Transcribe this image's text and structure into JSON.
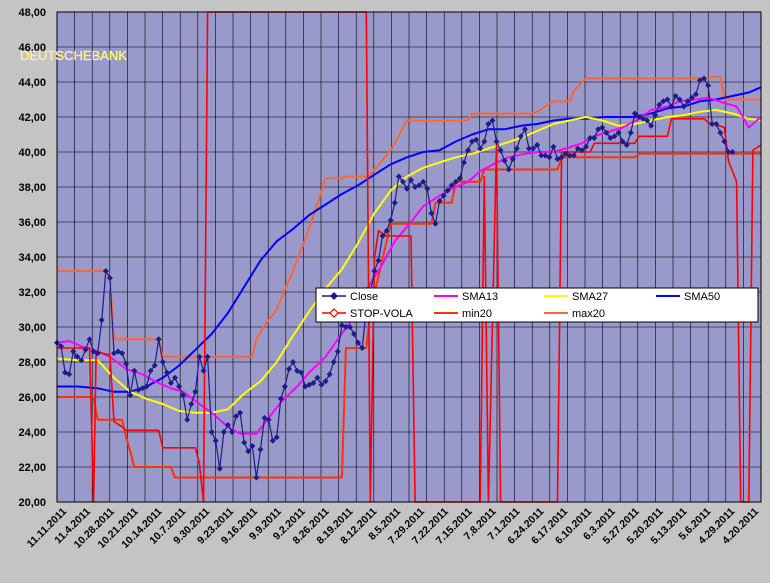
{
  "chart_data": {
    "type": "line",
    "title": "DEUTSCHEBANK",
    "xlabel": "",
    "ylabel": "",
    "ylim": [
      20,
      48
    ],
    "grid": true,
    "legend_position": "center-right",
    "y_ticks": [
      "20,00",
      "22,00",
      "24,00",
      "26,00",
      "28,00",
      "30,00",
      "32,00",
      "34,00",
      "36,00",
      "38,00",
      "40,00",
      "42,00",
      "44,00",
      "46,00",
      "48,00"
    ],
    "x_labels": [
      "11.11.2011",
      "11.4.2011",
      "10.28.2011",
      "10.21.2011",
      "10.14.2011",
      "10.7.2011",
      "9.30.2011",
      "9.23.2011",
      "9.16.2011",
      "9.9.2011",
      "9.2.2011",
      "8.26.2011",
      "8.19.2011",
      "8.12.2011",
      "8.5.2011",
      "7.29.2011",
      "7.22.2011",
      "7.15.2011",
      "7.8.2011",
      "7.1.2011",
      "6.24.2011",
      "6.17.2011",
      "6.10.2011",
      "6.3.2011",
      "5.27.2011",
      "5.20.2011",
      "5.13.2011",
      "5.6.2011",
      "4.29.2011",
      "4.20.2011"
    ],
    "legend": {
      "close": "Close",
      "sma13": "SMA13",
      "sma27": "SMA27",
      "sma50": "SMA50",
      "stop": "STOP-VOLA",
      "min20": "min20",
      "max20": "max20"
    },
    "colors": {
      "close": "#1c1c8c",
      "sma13": "#ff00ff",
      "sma27": "#ffff00",
      "sma50": "#0000ff",
      "stop": "#ff0000",
      "min20": "#ff3300",
      "max20": "#ff6633",
      "plot_bg": "#9999cc",
      "title": "#ffff00"
    },
    "series": [
      {
        "name": "Close",
        "values": [
          29.1,
          28.9,
          27.4,
          27.3,
          28.6,
          28.3,
          28.1,
          28.7,
          29.3,
          28.6,
          28.5,
          30.4,
          33.2,
          32.8,
          28.5,
          28.6,
          28.5,
          27.9,
          26.1,
          27.5,
          26.4,
          26.5,
          26.6,
          27.5,
          27.8,
          29.3,
          28.0,
          27.4,
          26.8,
          27.1,
          26.6,
          26.1,
          24.7,
          25.6,
          26.3,
          28.3,
          27.5,
          28.3,
          24.0,
          23.5,
          21.9,
          24.0,
          24.4,
          24.0,
          24.9,
          25.1,
          23.4,
          22.9,
          23.2,
          21.4,
          23.0,
          24.8,
          24.7,
          23.5,
          23.7,
          25.9,
          26.6,
          27.6,
          28.0,
          27.5,
          27.4,
          26.6,
          26.7,
          26.8,
          27.1,
          26.7,
          26.9,
          27.3,
          28.0,
          28.6,
          30.1,
          30.0,
          30.0,
          29.6,
          29.1,
          28.8,
          31.0,
          31.9,
          33.2,
          33.8,
          35.2,
          35.5,
          36.1,
          37.1,
          38.6,
          38.3,
          37.9,
          38.4,
          38.0,
          38.1,
          38.3,
          37.9,
          36.5,
          35.9,
          37.2,
          37.5,
          37.8,
          38.1,
          38.3,
          38.5,
          39.4,
          40.1,
          40.6,
          40.7,
          40.2,
          40.6,
          41.6,
          41.8,
          40.6,
          40.1,
          39.5,
          39.0,
          39.6,
          40.2,
          40.9,
          41.3,
          40.2,
          40.2,
          40.4,
          39.8,
          39.8,
          39.7,
          40.3,
          39.6,
          39.7,
          39.9,
          39.8,
          39.8,
          40.2,
          40.1,
          40.3,
          40.8,
          40.8,
          41.3,
          41.4,
          41.1,
          40.8,
          40.9,
          41.1,
          40.6,
          40.4,
          41.1,
          42.2,
          42.0,
          41.9,
          41.8,
          41.5,
          42.1,
          42.7,
          42.9,
          43.0,
          42.6,
          43.2,
          43.0,
          42.6,
          42.9,
          43.1,
          43.3,
          44.1,
          44.2,
          43.8,
          41.6,
          41.6,
          41.1,
          40.6,
          40.0,
          40.0
        ]
      },
      {
        "name": "SMA13",
        "points": [
          [
            0,
            29.1
          ],
          [
            3,
            29.2
          ],
          [
            6,
            28.9
          ],
          [
            10,
            28.6
          ],
          [
            13,
            28.3
          ],
          [
            17,
            27.6
          ],
          [
            21,
            27.3
          ],
          [
            24,
            26.9
          ],
          [
            28,
            26.5
          ],
          [
            31,
            26.3
          ],
          [
            35,
            25.6
          ],
          [
            38,
            25.1
          ],
          [
            42,
            24.3
          ],
          [
            45,
            23.9
          ],
          [
            49,
            23.9
          ],
          [
            52,
            24.8
          ],
          [
            55,
            25.7
          ],
          [
            59,
            26.6
          ],
          [
            62,
            27.4
          ],
          [
            66,
            28.3
          ],
          [
            69,
            29.3
          ],
          [
            73,
            30.6
          ],
          [
            76,
            32.1
          ],
          [
            80,
            33.6
          ],
          [
            83,
            34.9
          ],
          [
            87,
            36.0
          ],
          [
            90,
            36.9
          ],
          [
            94,
            37.5
          ],
          [
            97,
            37.9
          ],
          [
            101,
            38.3
          ],
          [
            104,
            38.9
          ],
          [
            108,
            39.4
          ],
          [
            111,
            39.7
          ],
          [
            115,
            39.9
          ],
          [
            118,
            40.0
          ],
          [
            122,
            40.0
          ],
          [
            125,
            40.2
          ],
          [
            129,
            40.5
          ],
          [
            132,
            40.9
          ],
          [
            136,
            41.2
          ],
          [
            139,
            41.4
          ],
          [
            143,
            41.9
          ],
          [
            146,
            42.4
          ],
          [
            150,
            42.6
          ],
          [
            153,
            42.9
          ],
          [
            157,
            43.0
          ],
          [
            160,
            43.1
          ],
          [
            164,
            42.8
          ],
          [
            167,
            42.6
          ],
          [
            170,
            41.4
          ],
          [
            173,
            42.0
          ]
        ]
      },
      {
        "name": "SMA27",
        "points": [
          [
            0,
            28.2
          ],
          [
            5,
            28.1
          ],
          [
            10,
            28.1
          ],
          [
            14,
            27.1
          ],
          [
            18,
            26.3
          ],
          [
            22,
            25.9
          ],
          [
            26,
            25.6
          ],
          [
            30,
            25.2
          ],
          [
            34,
            25.1
          ],
          [
            38,
            25.1
          ],
          [
            42,
            25.3
          ],
          [
            46,
            26.2
          ],
          [
            50,
            26.9
          ],
          [
            54,
            28.0
          ],
          [
            58,
            29.5
          ],
          [
            62,
            30.9
          ],
          [
            66,
            32.2
          ],
          [
            70,
            33.3
          ],
          [
            74,
            34.8
          ],
          [
            78,
            36.5
          ],
          [
            82,
            37.8
          ],
          [
            86,
            38.6
          ],
          [
            90,
            39.1
          ],
          [
            94,
            39.4
          ],
          [
            98,
            39.7
          ],
          [
            102,
            39.9
          ],
          [
            106,
            40.2
          ],
          [
            110,
            40.5
          ],
          [
            114,
            40.8
          ],
          [
            118,
            41.2
          ],
          [
            122,
            41.6
          ],
          [
            126,
            41.8
          ],
          [
            130,
            42.0
          ],
          [
            134,
            41.8
          ],
          [
            138,
            41.5
          ],
          [
            142,
            41.6
          ],
          [
            146,
            41.8
          ],
          [
            150,
            42.0
          ],
          [
            154,
            42.1
          ],
          [
            158,
            42.3
          ],
          [
            162,
            42.4
          ],
          [
            166,
            42.2
          ],
          [
            170,
            41.9
          ],
          [
            173,
            41.8
          ]
        ]
      },
      {
        "name": "SMA50",
        "points": [
          [
            0,
            26.6
          ],
          [
            5,
            26.6
          ],
          [
            10,
            26.5
          ],
          [
            14,
            26.3
          ],
          [
            18,
            26.3
          ],
          [
            22,
            26.6
          ],
          [
            26,
            27.1
          ],
          [
            30,
            27.8
          ],
          [
            34,
            28.7
          ],
          [
            38,
            29.6
          ],
          [
            42,
            30.8
          ],
          [
            46,
            32.3
          ],
          [
            50,
            33.8
          ],
          [
            54,
            34.9
          ],
          [
            58,
            35.6
          ],
          [
            62,
            36.4
          ],
          [
            66,
            37.0
          ],
          [
            70,
            37.6
          ],
          [
            74,
            38.1
          ],
          [
            78,
            38.7
          ],
          [
            82,
            39.3
          ],
          [
            86,
            39.7
          ],
          [
            90,
            40.0
          ],
          [
            94,
            40.1
          ],
          [
            98,
            40.6
          ],
          [
            102,
            41.0
          ],
          [
            106,
            41.3
          ],
          [
            110,
            41.3
          ],
          [
            114,
            41.5
          ],
          [
            118,
            41.6
          ],
          [
            122,
            41.8
          ],
          [
            126,
            41.9
          ],
          [
            130,
            41.9
          ],
          [
            134,
            42.0
          ],
          [
            138,
            42.0
          ],
          [
            142,
            42.0
          ],
          [
            146,
            42.2
          ],
          [
            150,
            42.5
          ],
          [
            154,
            42.6
          ],
          [
            158,
            42.9
          ],
          [
            162,
            43.0
          ],
          [
            166,
            43.2
          ],
          [
            170,
            43.4
          ],
          [
            173,
            43.7
          ]
        ]
      },
      {
        "name": "STOP-VOLA",
        "points": [
          [
            0,
            28.8
          ],
          [
            8,
            28.8
          ],
          [
            9,
            20
          ],
          [
            9.6,
            28.6
          ],
          [
            13,
            28.4
          ],
          [
            14,
            24.6
          ],
          [
            16,
            24.3
          ],
          [
            17,
            24.1
          ],
          [
            25,
            24.1
          ],
          [
            26,
            23.1
          ],
          [
            34,
            23.1
          ],
          [
            35,
            22.2
          ],
          [
            36,
            20
          ],
          [
            37,
            48
          ],
          [
            76,
            48
          ],
          [
            77,
            20
          ],
          [
            78,
            33.9
          ],
          [
            79,
            35.5
          ],
          [
            81,
            35.2
          ],
          [
            87,
            35.2
          ],
          [
            88,
            20
          ],
          [
            104,
            20
          ],
          [
            105,
            38.6
          ],
          [
            106,
            20
          ],
          [
            108,
            40.4
          ],
          [
            109,
            20
          ],
          [
            123,
            20
          ],
          [
            124,
            40.0
          ],
          [
            131,
            40.0
          ],
          [
            132,
            40.5
          ],
          [
            142,
            40.5
          ],
          [
            143,
            40.9
          ],
          [
            150,
            40.9
          ],
          [
            151,
            41.9
          ],
          [
            159,
            41.9
          ],
          [
            160,
            41.7
          ],
          [
            164,
            41.4
          ],
          [
            165,
            39.5
          ],
          [
            167,
            38.3
          ],
          [
            168,
            20
          ],
          [
            170,
            20
          ],
          [
            171,
            40.1
          ],
          [
            173,
            40.4
          ]
        ]
      },
      {
        "name": "min20",
        "points": [
          [
            0,
            26.0
          ],
          [
            9,
            26.0
          ],
          [
            10,
            24.7
          ],
          [
            16,
            24.7
          ],
          [
            17,
            23.7
          ],
          [
            18,
            22.9
          ],
          [
            19,
            22.0
          ],
          [
            28,
            22.0
          ],
          [
            29,
            21.4
          ],
          [
            49,
            21.4
          ],
          [
            50,
            21.4
          ],
          [
            70,
            21.4
          ],
          [
            71,
            28.8
          ],
          [
            76,
            28.8
          ],
          [
            77,
            30.9
          ],
          [
            82,
            35.9
          ],
          [
            92,
            35.9
          ],
          [
            93,
            37.1
          ],
          [
            97,
            37.1
          ],
          [
            98,
            38.3
          ],
          [
            104,
            38.3
          ],
          [
            105,
            39.0
          ],
          [
            123,
            39.0
          ],
          [
            124,
            39.7
          ],
          [
            142,
            39.7
          ],
          [
            143,
            39.9
          ],
          [
            173,
            39.9
          ]
        ]
      },
      {
        "name": "max20",
        "points": [
          [
            0,
            33.2
          ],
          [
            12,
            33.2
          ],
          [
            13,
            32.8
          ],
          [
            14,
            29.3
          ],
          [
            25,
            29.3
          ],
          [
            26,
            28.3
          ],
          [
            48,
            28.3
          ],
          [
            49,
            29.3
          ],
          [
            51,
            30.1
          ],
          [
            54,
            31.0
          ],
          [
            58,
            33.2
          ],
          [
            61,
            35.0
          ],
          [
            64,
            37.0
          ],
          [
            66,
            38.5
          ],
          [
            70,
            38.5
          ],
          [
            71,
            38.6
          ],
          [
            76,
            38.6
          ],
          [
            77,
            38.7
          ],
          [
            82,
            40.1
          ],
          [
            86,
            41.8
          ],
          [
            101,
            41.8
          ],
          [
            102,
            42.2
          ],
          [
            108,
            42.2
          ],
          [
            117,
            42.2
          ],
          [
            118,
            42.3
          ],
          [
            122,
            42.9
          ],
          [
            126,
            42.9
          ],
          [
            127,
            43.5
          ],
          [
            130,
            44.2
          ],
          [
            160,
            44.2
          ],
          [
            161,
            44.3
          ],
          [
            163,
            44.3
          ],
          [
            164,
            43.0
          ],
          [
            173,
            43.0
          ]
        ]
      }
    ]
  }
}
